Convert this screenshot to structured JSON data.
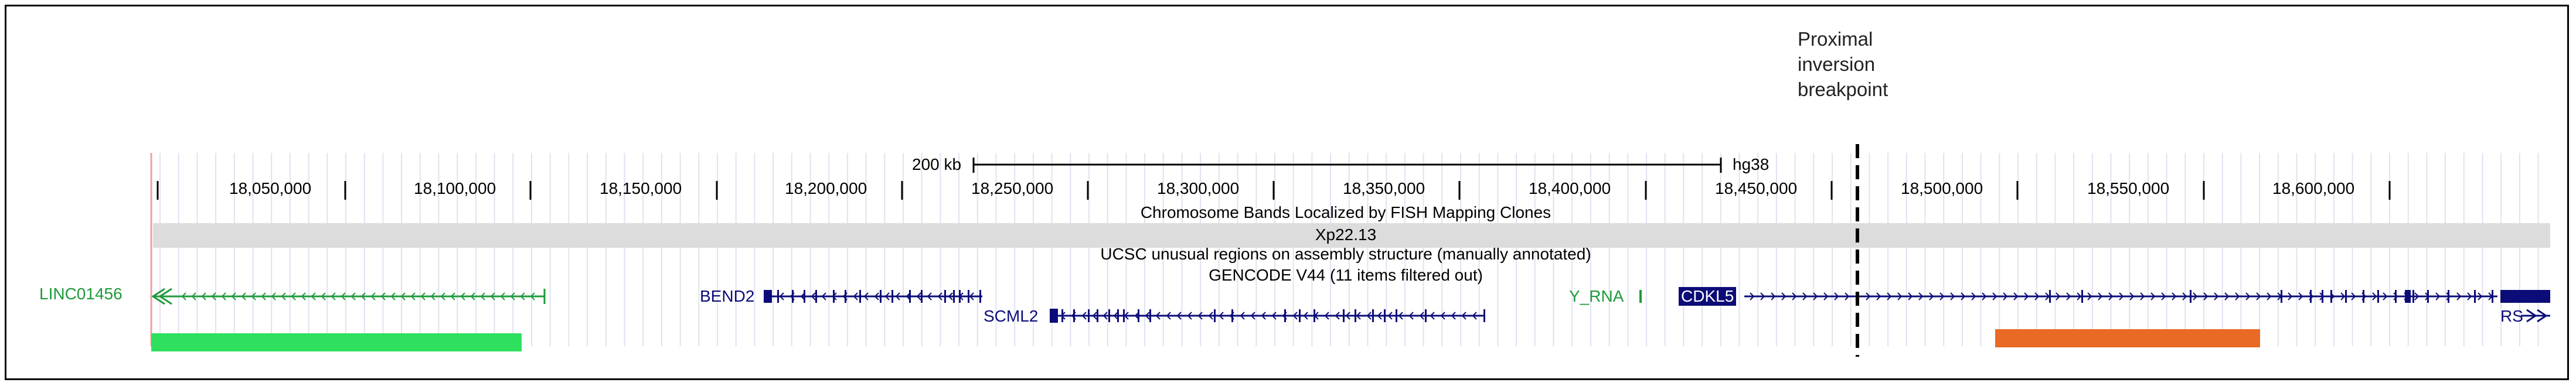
{
  "annotation": {
    "lines": [
      "Proximal",
      "inversion",
      "breakpoint"
    ]
  },
  "ruler": {
    "scale_label": "200 kb",
    "assembly": "hg38",
    "positions": [
      "18,050,000",
      "18,100,000",
      "18,150,000",
      "18,200,000",
      "18,250,000",
      "18,300,000",
      "18,350,000",
      "18,400,000",
      "18,450,000",
      "18,500,000",
      "18,550,000",
      "18,600,000"
    ]
  },
  "tracks": {
    "fish_title": "Chromosome Bands Localized by FISH Mapping Clones",
    "band": "Xp22.13",
    "unusual_title": "UCSC unusual regions on assembly structure (manually annotated)",
    "gencode_title": "GENCODE V44 (11 items filtered out)"
  },
  "genes": {
    "linc": "LINC01456",
    "bend2": "BEND2",
    "scml2": "SCML2",
    "y_rna": "Y_RNA",
    "cdkl5": "CDKL5",
    "rs": "RS"
  },
  "colors": {
    "gene_dark_blue": "#0c0c78",
    "gene_green": "#1f9a3a",
    "green_bar": "#2ee05e",
    "orange_bar": "#e86a25",
    "band_gray": "#dcdcdc",
    "base_line_red": "#f0a0a0"
  }
}
